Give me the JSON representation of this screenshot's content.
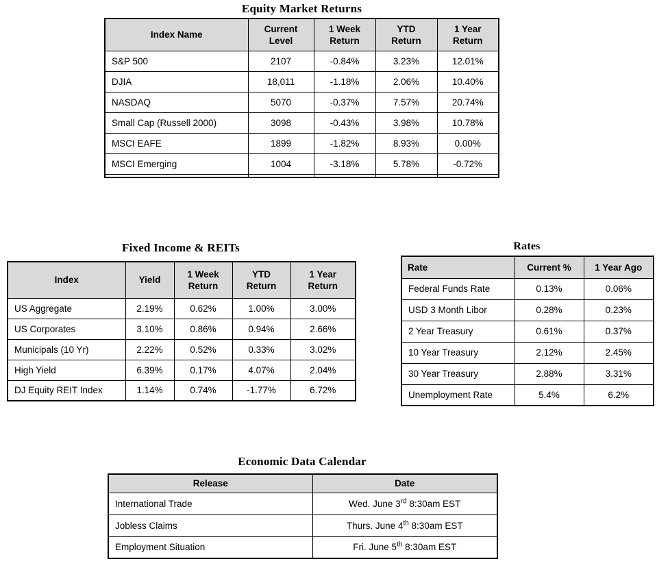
{
  "colors": {
    "header_bg": "#d9d9d9",
    "border": "#000000",
    "text": "#000000",
    "page_bg": "#ffffff"
  },
  "tables": {
    "equity": {
      "title": "Equity Market Returns",
      "columns": [
        "Index Name",
        "Current\nLevel",
        "1 Week\nReturn",
        "YTD\nReturn",
        "1 Year\nReturn"
      ],
      "rows": [
        [
          "S&P 500",
          "2107",
          "-0.84%",
          "3.23%",
          "12.01%"
        ],
        [
          "DJIA",
          "18,011",
          "-1.18%",
          "2.06%",
          "10.40%"
        ],
        [
          "NASDAQ",
          "5070",
          "-0.37%",
          "7.57%",
          "20.74%"
        ],
        [
          "Small Cap (Russell 2000)",
          "3098",
          "-0.43%",
          "3.98%",
          "10.78%"
        ],
        [
          "MSCI EAFE",
          "1899",
          "-1.82%",
          "8.93%",
          "0.00%"
        ],
        [
          "MSCI Emerging",
          "1004",
          "-3.18%",
          "5.78%",
          "-0.72%"
        ]
      ]
    },
    "fixed_income": {
      "title": "Fixed Income & REITs",
      "columns": [
        "Index",
        "Yield",
        "1 Week\nReturn",
        "YTD\nReturn",
        "1 Year\nReturn"
      ],
      "rows": [
        [
          "US Aggregate",
          "2.19%",
          "0.62%",
          "1.00%",
          "3.00%"
        ],
        [
          "US Corporates",
          "3.10%",
          "0.86%",
          "0.94%",
          "2.66%"
        ],
        [
          "Municipals (10 Yr)",
          "2.22%",
          "0.52%",
          "0.33%",
          "3.02%"
        ],
        [
          "High Yield",
          "6.39%",
          "0.17%",
          "4.07%",
          "2.04%"
        ],
        [
          "DJ Equity REIT Index",
          "1.14%",
          "0.74%",
          "-1.77%",
          "6.72%"
        ]
      ]
    },
    "rates": {
      "title": "Rates",
      "columns": [
        "Rate",
        "Current %",
        "1 Year Ago"
      ],
      "rows": [
        [
          "Federal Funds Rate",
          "0.13%",
          "0.06%"
        ],
        [
          "USD 3 Month Libor",
          "0.28%",
          "0.23%"
        ],
        [
          "2 Year Treasury",
          "0.61%",
          "0.37%"
        ],
        [
          "10 Year Treasury",
          "2.12%",
          "2.45%"
        ],
        [
          "30 Year Treasury",
          "2.88%",
          "3.31%"
        ],
        [
          "Unemployment Rate",
          "5.4%",
          "6.2%"
        ]
      ]
    },
    "calendar": {
      "title": "Economic Data Calendar",
      "columns": [
        "Release",
        "Date"
      ],
      "rows": [
        [
          "International Trade",
          {
            "pre": "Wed. June 3",
            "sup": "rd",
            "post": " 8:30am EST"
          }
        ],
        [
          "Jobless Claims",
          {
            "pre": "Thurs. June 4",
            "sup": "th",
            "post": " 8:30am EST"
          }
        ],
        [
          "Employment Situation",
          {
            "pre": "Fri. June 5",
            "sup": "th",
            "post": " 8:30am EST"
          }
        ]
      ]
    }
  }
}
